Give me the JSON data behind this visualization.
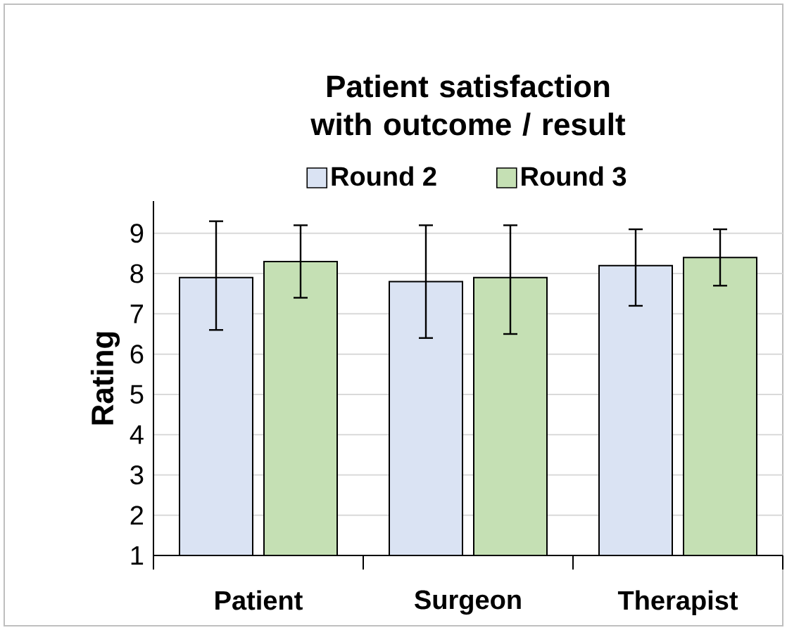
{
  "chart_data": {
    "type": "bar",
    "title": "Patient satisfaction with outcome / result",
    "ylabel": "Rating",
    "categories": [
      "Patient",
      "Surgeon",
      "Therapist"
    ],
    "series": [
      {
        "name": "Round 2",
        "color": "#dae3f3",
        "values": [
          7.9,
          7.8,
          8.2
        ],
        "errors": [
          [
            6.6,
            9.3
          ],
          [
            6.4,
            9.2
          ],
          [
            7.2,
            9.1
          ]
        ]
      },
      {
        "name": "Round 3",
        "color": "#c5e0b4",
        "values": [
          8.3,
          7.9,
          8.4
        ],
        "errors": [
          [
            7.4,
            9.2
          ],
          [
            6.5,
            9.2
          ],
          [
            7.7,
            9.1
          ]
        ]
      }
    ],
    "ylim": [
      1,
      9.8
    ],
    "yticks": [
      1,
      2,
      3,
      4,
      5,
      6,
      7,
      8,
      9
    ],
    "grid": "y",
    "legend": "top"
  }
}
